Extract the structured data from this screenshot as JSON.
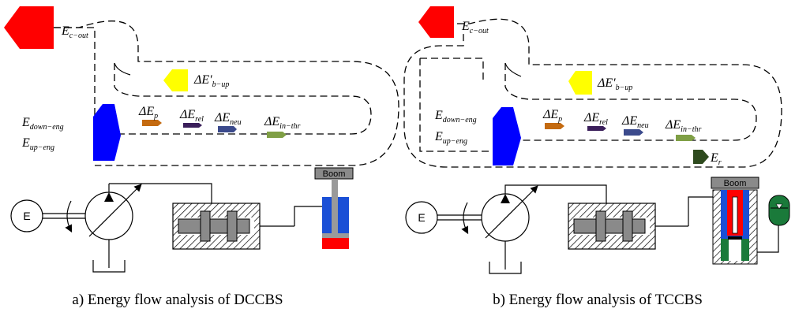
{
  "colors": {
    "engine_out": "#ff0000",
    "back_up": "#ffff00",
    "engine_down_up": "#0000ff",
    "delta_p": "#c46a10",
    "delta_rel": "#3a1e5a",
    "delta_neu": "#3b4a8c",
    "delta_in_thr": "#7f9f45",
    "e_r": "#2e4a1e",
    "cylinder_body": "#1a4fd6",
    "cylinder_rod_side": "#ff0000",
    "rod": "#9a9a9a",
    "accumulator": "#1a7a3a"
  },
  "panel_a": {
    "caption": "a) Energy flow analysis of DCCBS",
    "labels": {
      "e_c_out": {
        "main": "E",
        "sub": "c−out"
      },
      "delta_e_b_up": {
        "main": "ΔE′",
        "sub": "b−up"
      },
      "e_down_eng": {
        "main": "E",
        "sub": "down−eng"
      },
      "e_up_eng": {
        "main": "E",
        "sub": "up−eng"
      },
      "delta_e_p": {
        "main": "ΔE",
        "sub": "p"
      },
      "delta_e_rel": {
        "main": "ΔE",
        "sub": "rel"
      },
      "delta_e_neu": {
        "main": "ΔE",
        "sub": "neu"
      },
      "delta_e_in_thr": {
        "main": "ΔE",
        "sub": "in−thr"
      }
    },
    "engine_label": "E",
    "boom_label": "Boom"
  },
  "panel_b": {
    "caption": "b) Energy flow analysis of TCCBS",
    "labels": {
      "e_c_out": {
        "main": "E",
        "sub": "c−out"
      },
      "delta_e_b_up": {
        "main": "ΔE′",
        "sub": "b−up"
      },
      "e_down_eng": {
        "main": "E",
        "sub": "down−eng"
      },
      "e_up_eng": {
        "main": "E",
        "sub": "up−eng"
      },
      "delta_e_p": {
        "main": "ΔE",
        "sub": "p"
      },
      "delta_e_rel": {
        "main": "ΔE",
        "sub": "rel"
      },
      "delta_e_neu": {
        "main": "ΔE",
        "sub": "neu"
      },
      "delta_e_in_thr": {
        "main": "ΔE",
        "sub": "in−thr"
      },
      "e_r": {
        "main": "E",
        "sub": "r"
      }
    },
    "engine_label": "E",
    "boom_label": "Boom"
  }
}
